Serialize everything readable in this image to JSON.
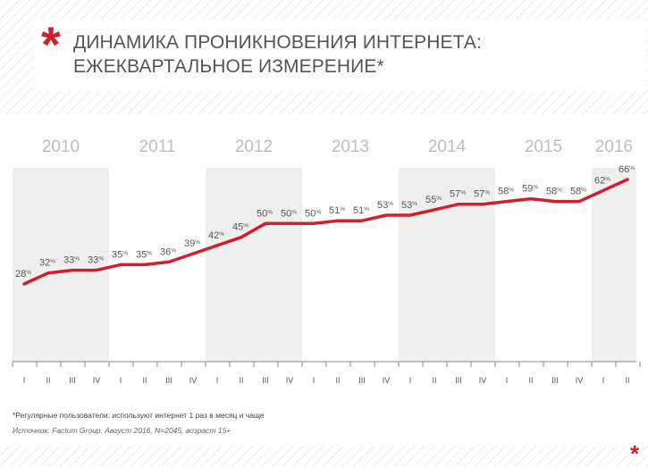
{
  "title": {
    "line1": "ДИНАМИКА ПРОНИКНОВЕНИЯ ИНТЕРНЕТА:",
    "line2": "ЕЖЕКВАРТАЛЬНОЕ ИЗМЕРЕНИЕ*",
    "star": "*"
  },
  "chart_data": {
    "type": "line",
    "title": "ДИНАМИКА ПРОНИКНОВЕНИЯ ИНТЕРНЕТА: ЕЖЕКВАРТАЛЬНОЕ ИЗМЕРЕНИЕ*",
    "xlabel": "",
    "ylabel": "",
    "ylim": [
      0,
      75
    ],
    "years": [
      "2010",
      "2011",
      "2012",
      "2013",
      "2014",
      "2015",
      "2016"
    ],
    "quarter_labels": [
      "I",
      "II",
      "III",
      "IV",
      "I",
      "II",
      "III",
      "IV",
      "I",
      "II",
      "III",
      "IV",
      "I",
      "II",
      "III",
      "IV",
      "I",
      "II",
      "III",
      "IV",
      "I",
      "II",
      "III",
      "IV",
      "I",
      "II"
    ],
    "series": [
      {
        "name": "Регулярные пользователи",
        "values": [
          28,
          32,
          33,
          33,
          35,
          35,
          36,
          39,
          42,
          45,
          50,
          50,
          50,
          51,
          51,
          53,
          53,
          55,
          57,
          57,
          58,
          59,
          58,
          58,
          62,
          66
        ],
        "unit": "%",
        "color": "#d0202e"
      }
    ],
    "grid": false
  },
  "footnotes": {
    "definition": "*Регулярные пользователи: используют интернет 1 раз в месяц и чаще",
    "source": "Источник: Factum Group, Август 2016, N=2045, возраст 15+"
  },
  "colors": {
    "accent": "#d0202e",
    "band": "#efefef",
    "axis": "#888888",
    "text": "#555555",
    "year_text": "#bdbdbd"
  }
}
